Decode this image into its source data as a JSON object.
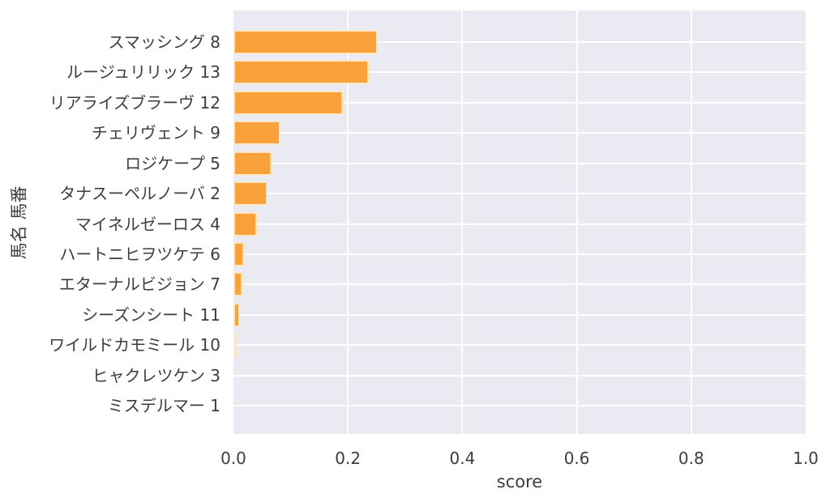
{
  "figure": {
    "background": "#ffffff",
    "plot_background": "#eaeaf2",
    "grid_color": "#ffffff",
    "bar_color": "#f9a23c",
    "bar_edge_color": "#fffcf5",
    "text_color": "#3d3d3d"
  },
  "chart_data": {
    "type": "bar",
    "orientation": "horizontal",
    "title": "",
    "xlabel": "score",
    "ylabel": "馬名 馬番",
    "grid": true,
    "legend": false,
    "xlim": [
      0.0,
      1.0
    ],
    "x_ticks": [
      "0.0",
      "0.2",
      "0.4",
      "0.6",
      "0.8",
      "1.0"
    ],
    "x_tick_values": [
      0.0,
      0.2,
      0.4,
      0.6,
      0.8,
      1.0
    ],
    "categories": [
      "スマッシング 8",
      "ルージュリリック 13",
      "リアライズブラーヴ 12",
      "チェリヴェント 9",
      "ロジケープ 5",
      "タナスーペルノーバ 2",
      "マイネルゼーロス 4",
      "ハートニヒヲツケテ 6",
      "エターナルビジョン 7",
      "シーズンシート 11",
      "ワイルドカモミール 10",
      "ヒャクレツケン 3",
      "ミスデルマー 1"
    ],
    "values": [
      0.252,
      0.236,
      0.191,
      0.082,
      0.067,
      0.06,
      0.041,
      0.018,
      0.016,
      0.012,
      0.004,
      0.0,
      0.0
    ]
  }
}
